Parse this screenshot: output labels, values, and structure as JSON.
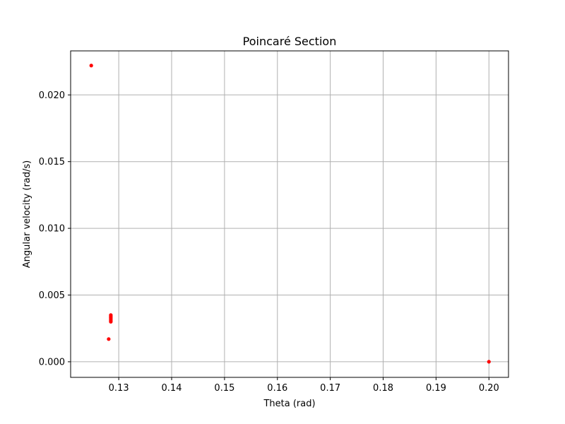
{
  "chart_data": {
    "type": "scatter",
    "title": "Poincaré Section",
    "xlabel": "Theta (rad)",
    "ylabel": "Angular velocity (rad/s)",
    "xlim": [
      0.1209,
      0.2037
    ],
    "ylim": [
      -0.00117,
      0.0233
    ],
    "xticks": [
      "0.13",
      "0.14",
      "0.15",
      "0.16",
      "0.17",
      "0.18",
      "0.19",
      "0.20"
    ],
    "xtick_values": [
      0.13,
      0.14,
      0.15,
      0.16,
      0.17,
      0.18,
      0.19,
      0.2
    ],
    "yticks": [
      "0.000",
      "0.005",
      "0.010",
      "0.015",
      "0.020"
    ],
    "ytick_values": [
      0.0,
      0.005,
      0.01,
      0.015,
      0.02
    ],
    "grid": true,
    "marker_color": "#ff0000",
    "series": [
      {
        "points": [
          {
            "x": 0.1248,
            "y": 0.0222
          },
          {
            "x": 0.1281,
            "y": 0.0017
          },
          {
            "x": 0.1285,
            "y": 0.0035
          },
          {
            "x": 0.1285,
            "y": 0.0034
          },
          {
            "x": 0.1285,
            "y": 0.0033
          },
          {
            "x": 0.1285,
            "y": 0.0032
          },
          {
            "x": 0.1285,
            "y": 0.0031
          },
          {
            "x": 0.1285,
            "y": 0.003
          },
          {
            "x": 0.2,
            "y": 0.0
          }
        ]
      }
    ]
  }
}
